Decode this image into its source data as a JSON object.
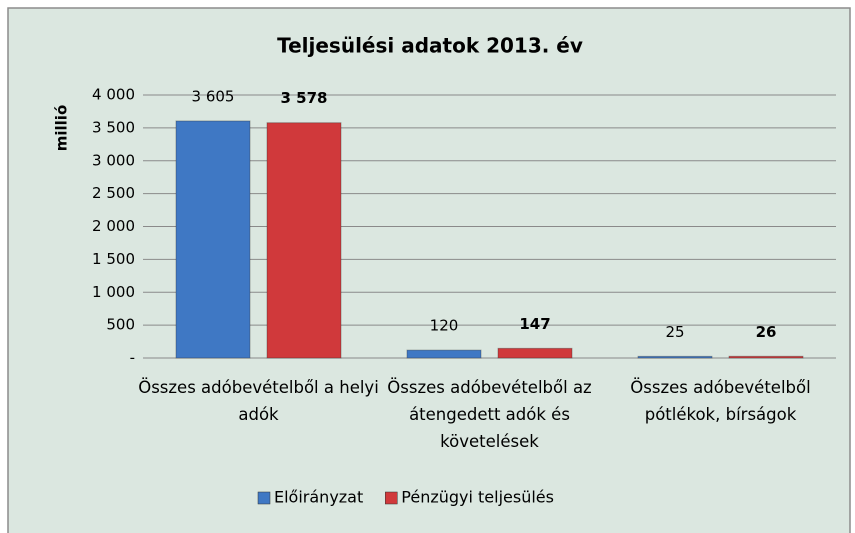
{
  "chart_data": {
    "type": "bar",
    "title": "Teljesülési adatok 2013. év",
    "y_label": "millió",
    "categories": [
      "Összes adóbevételből a helyi adók",
      "Összes adóbevételből az átengedett adók és követelések",
      "Összes adóbevételből pótlékok, bírságok"
    ],
    "series": [
      {
        "name": "Előirányzat",
        "color": "#3f78c4",
        "values": [
          3605,
          120,
          25
        ],
        "value_labels": [
          "3 605",
          "120",
          "25"
        ]
      },
      {
        "name": "Pénzügyi teljesülés",
        "color": "#d0393b",
        "values": [
          3578,
          147,
          26
        ],
        "value_labels": [
          "3 578",
          "147",
          "26"
        ]
      }
    ],
    "ylim": [
      0,
      4000
    ],
    "yticks": [
      {
        "value": 0,
        "label": "-"
      },
      500,
      {
        "value": 1000,
        "label": "1 000"
      },
      {
        "value": 1500,
        "label": "1 500"
      },
      {
        "value": 2000,
        "label": "2 000"
      },
      {
        "value": 2500,
        "label": "2 500"
      },
      {
        "value": 3000,
        "label": "3 000"
      },
      {
        "value": 3500,
        "label": "3 500"
      },
      {
        "value": 4000,
        "label": "4 000"
      }
    ],
    "grid": true,
    "legend": "bottom"
  }
}
